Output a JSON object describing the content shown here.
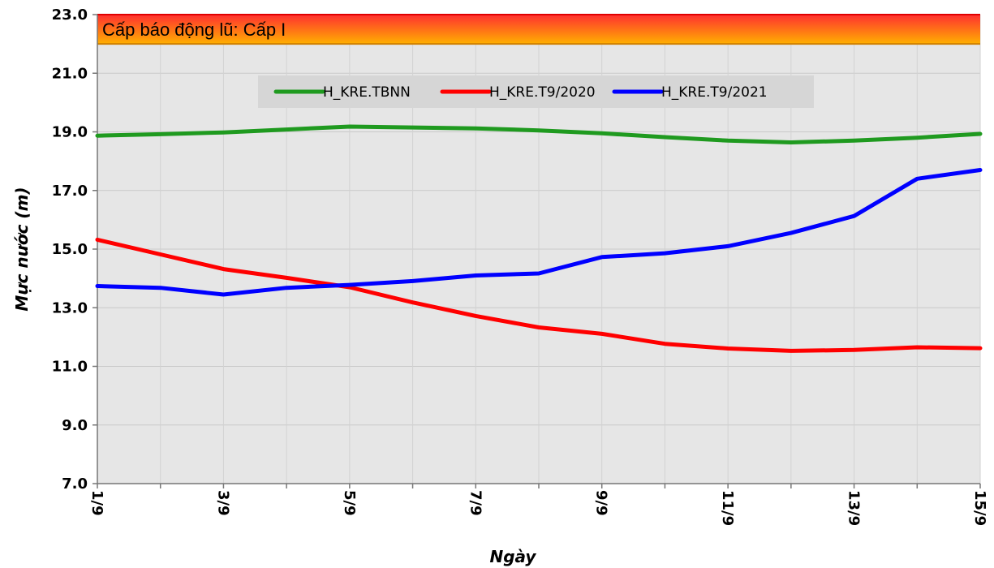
{
  "chart_data": {
    "type": "line",
    "xlabel": "Ngày",
    "ylabel": "Mực nước (m)",
    "ylim": [
      7.0,
      23.0
    ],
    "y_ticks": [
      "7.0",
      "9.0",
      "11.0",
      "13.0",
      "15.0",
      "17.0",
      "19.0",
      "21.0",
      "23.0"
    ],
    "x": [
      "1/9",
      "2/9",
      "3/9",
      "4/9",
      "5/9",
      "6/9",
      "7/9",
      "8/9",
      "9/9",
      "10/9",
      "11/9",
      "12/9",
      "13/9",
      "14/9",
      "15/9"
    ],
    "x_tick_labels": [
      "1/9",
      "3/9",
      "5/9",
      "7/9",
      "9/9",
      "11/9",
      "13/9",
      "15/9"
    ],
    "grid": true,
    "legend_position": "top-center",
    "alarm_band": {
      "label": "Cấp báo động lũ: Cấp I",
      "from": 22.0,
      "to": 23.0,
      "color_top": "#ff3030",
      "color_bottom": "#ffb000"
    },
    "series": [
      {
        "name": "H_KRE.TBNN",
        "color": "#1f9a1f",
        "values": [
          18.87,
          18.92,
          18.98,
          19.08,
          19.18,
          19.15,
          19.12,
          19.05,
          18.95,
          18.82,
          18.7,
          18.64,
          18.7,
          18.8,
          18.93
        ]
      },
      {
        "name": "H_KRE.T9/2020",
        "color": "#ff0000",
        "values": [
          15.32,
          14.82,
          14.32,
          14.02,
          13.7,
          13.18,
          12.72,
          12.33,
          12.11,
          11.77,
          11.61,
          11.53,
          11.56,
          11.65,
          11.62
        ]
      },
      {
        "name": "H_KRE.T9/2021",
        "color": "#0000ff",
        "values": [
          13.74,
          13.68,
          13.45,
          13.68,
          13.78,
          13.91,
          14.1,
          14.17,
          14.73,
          14.86,
          15.1,
          15.55,
          16.13,
          17.4,
          17.7
        ]
      }
    ]
  }
}
